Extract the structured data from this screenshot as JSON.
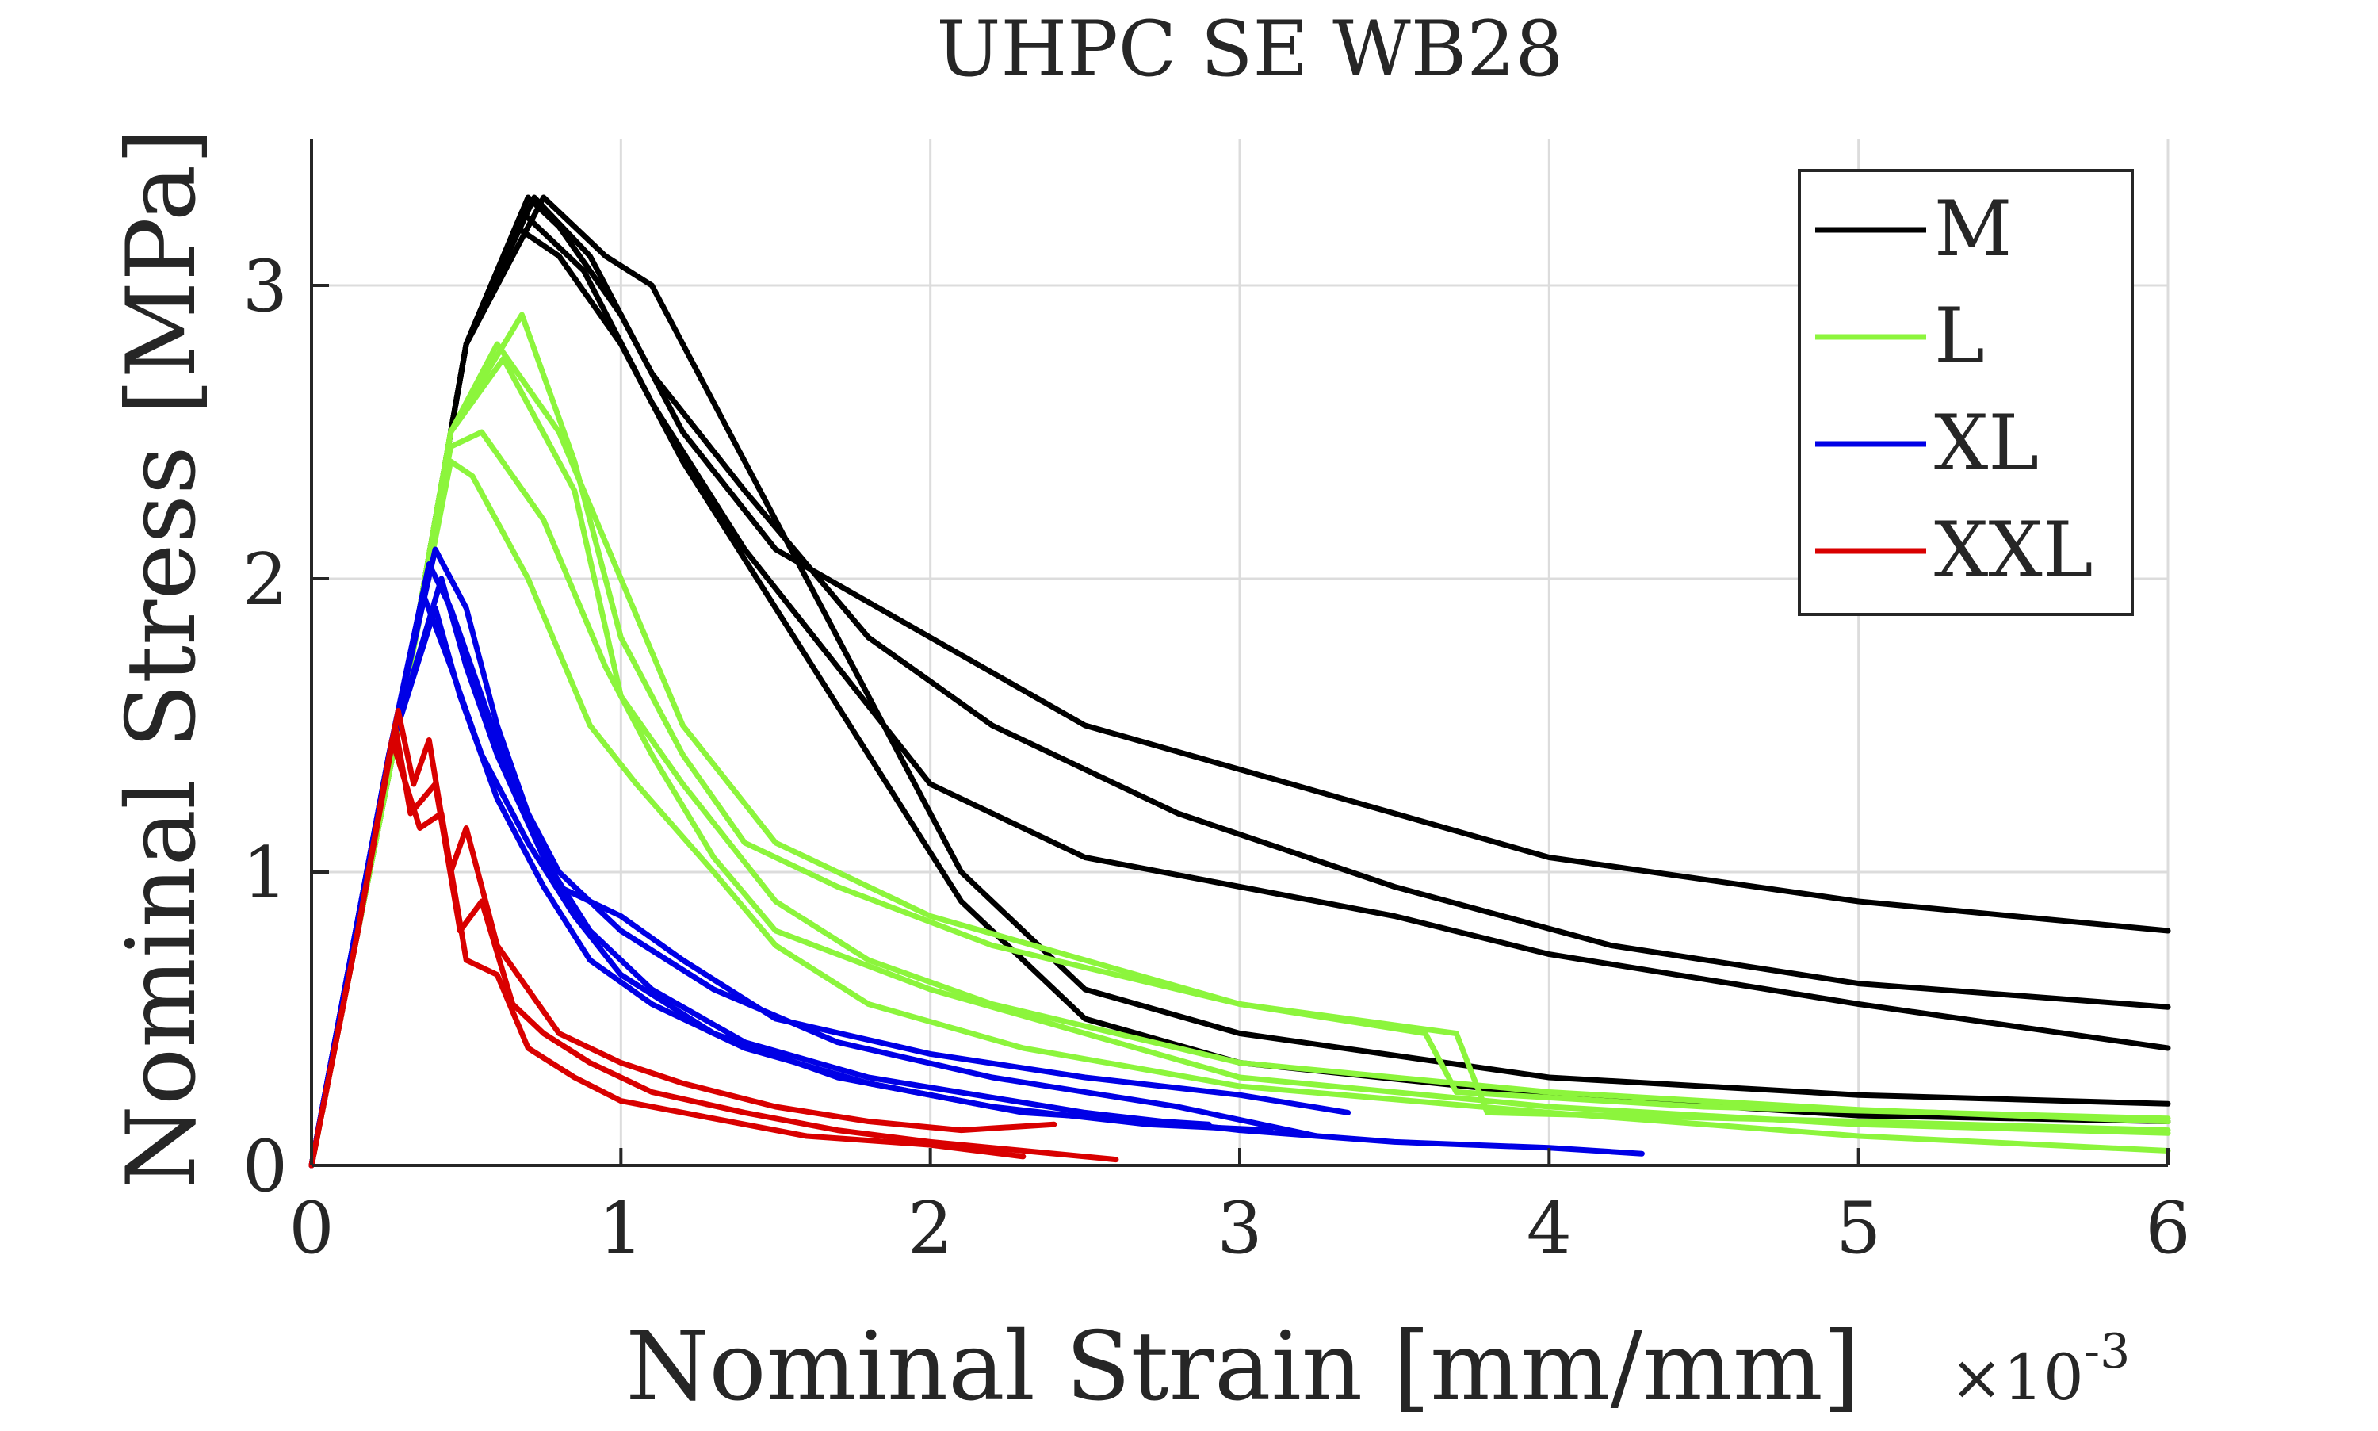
{
  "chart_data": {
    "type": "line",
    "title": "UHPC SE WB28",
    "xlabel": "Nominal Strain [mm/mm]",
    "ylabel": "Nominal Stress [MPa]",
    "x_multiplier_base": "×10",
    "x_multiplier_exponent": "-3",
    "xlim": [
      0,
      6
    ],
    "ylim": [
      0,
      3.5
    ],
    "xticks": [
      0,
      1,
      2,
      3,
      4,
      5,
      6
    ],
    "yticks": [
      0,
      1,
      2,
      3
    ],
    "x_tick_labels": [
      "0",
      "1",
      "2",
      "3",
      "4",
      "5",
      "6"
    ],
    "y_tick_labels": [
      "0",
      "1",
      "2",
      "3"
    ],
    "grid": true,
    "legend_position": "top-right",
    "legend": [
      "M",
      "L",
      "XL",
      "XXL"
    ],
    "colors": {
      "M": "#000000",
      "L": "#8cf53c",
      "XL": "#0000e6",
      "XXL": "#d90000",
      "axis": "#262626",
      "grid": "#dcdcdc"
    },
    "series": [
      {
        "name": "M",
        "color": "#000000",
        "points": [
          [
            0,
            0
          ],
          [
            0.3,
            1.6
          ],
          [
            0.5,
            2.8
          ],
          [
            0.7,
            3.3
          ],
          [
            0.8,
            3.2
          ],
          [
            1.0,
            2.9
          ],
          [
            1.2,
            2.5
          ],
          [
            1.5,
            2.1
          ],
          [
            2.0,
            1.8
          ],
          [
            2.5,
            1.5
          ],
          [
            3.0,
            1.35
          ],
          [
            3.5,
            1.2
          ],
          [
            4.0,
            1.05
          ],
          [
            5.0,
            0.9
          ],
          [
            6.0,
            0.8
          ]
        ]
      },
      {
        "name": "M",
        "color": "#000000",
        "points": [
          [
            0,
            0
          ],
          [
            0.3,
            1.6
          ],
          [
            0.5,
            2.8
          ],
          [
            0.72,
            3.3
          ],
          [
            0.9,
            3.1
          ],
          [
            1.1,
            2.7
          ],
          [
            1.4,
            2.3
          ],
          [
            1.8,
            1.8
          ],
          [
            2.2,
            1.5
          ],
          [
            2.8,
            1.2
          ],
          [
            3.5,
            0.95
          ],
          [
            4.2,
            0.75
          ],
          [
            5.0,
            0.62
          ],
          [
            6.0,
            0.54
          ]
        ]
      },
      {
        "name": "M",
        "color": "#000000",
        "points": [
          [
            0,
            0
          ],
          [
            0.3,
            1.6
          ],
          [
            0.5,
            2.8
          ],
          [
            0.68,
            3.25
          ],
          [
            0.88,
            3.05
          ],
          [
            1.1,
            2.6
          ],
          [
            1.4,
            2.1
          ],
          [
            1.7,
            1.7
          ],
          [
            2.0,
            1.3
          ],
          [
            2.5,
            1.05
          ],
          [
            3.0,
            0.95
          ],
          [
            3.5,
            0.85
          ],
          [
            4.0,
            0.72
          ],
          [
            5.0,
            0.55
          ],
          [
            6.0,
            0.4
          ]
        ]
      },
      {
        "name": "M",
        "color": "#000000",
        "points": [
          [
            0,
            0
          ],
          [
            0.3,
            1.6
          ],
          [
            0.5,
            2.8
          ],
          [
            0.75,
            3.3
          ],
          [
            0.95,
            3.1
          ],
          [
            1.1,
            3.0
          ],
          [
            1.3,
            2.6
          ],
          [
            1.5,
            2.2
          ],
          [
            1.8,
            1.6
          ],
          [
            2.1,
            1.0
          ],
          [
            2.5,
            0.6
          ],
          [
            3.0,
            0.45
          ],
          [
            4.0,
            0.3
          ],
          [
            5.0,
            0.24
          ],
          [
            6.0,
            0.21
          ]
        ]
      },
      {
        "name": "M",
        "color": "#000000",
        "points": [
          [
            0,
            0
          ],
          [
            0.3,
            1.6
          ],
          [
            0.5,
            2.8
          ],
          [
            0.66,
            3.2
          ],
          [
            0.8,
            3.1
          ],
          [
            1.0,
            2.8
          ],
          [
            1.2,
            2.4
          ],
          [
            1.5,
            1.9
          ],
          [
            1.8,
            1.4
          ],
          [
            2.1,
            0.9
          ],
          [
            2.5,
            0.5
          ],
          [
            3.0,
            0.35
          ],
          [
            4.0,
            0.24
          ],
          [
            5.0,
            0.17
          ],
          [
            6.0,
            0.15
          ]
        ]
      },
      {
        "name": "L",
        "color": "#8cf53c",
        "points": [
          [
            0,
            0
          ],
          [
            0.3,
            1.6
          ],
          [
            0.45,
            2.5
          ],
          [
            0.68,
            2.9
          ],
          [
            0.85,
            2.4
          ],
          [
            1.0,
            1.8
          ],
          [
            1.2,
            1.4
          ],
          [
            1.4,
            1.1
          ],
          [
            1.7,
            0.95
          ],
          [
            2.2,
            0.75
          ],
          [
            3.0,
            0.55
          ],
          [
            3.6,
            0.45
          ],
          [
            3.7,
            0.25
          ],
          [
            4.5,
            0.2
          ],
          [
            6.0,
            0.16
          ]
        ]
      },
      {
        "name": "L",
        "color": "#8cf53c",
        "points": [
          [
            0,
            0
          ],
          [
            0.3,
            1.6
          ],
          [
            0.45,
            2.5
          ],
          [
            0.6,
            2.8
          ],
          [
            0.8,
            2.5
          ],
          [
            1.0,
            2.0
          ],
          [
            1.2,
            1.5
          ],
          [
            1.5,
            1.1
          ],
          [
            2.0,
            0.85
          ],
          [
            2.5,
            0.7
          ],
          [
            3.0,
            0.55
          ],
          [
            3.7,
            0.45
          ],
          [
            3.8,
            0.18
          ],
          [
            5.0,
            0.15
          ],
          [
            6.0,
            0.12
          ]
        ]
      },
      {
        "name": "L",
        "color": "#8cf53c",
        "points": [
          [
            0,
            0
          ],
          [
            0.3,
            1.6
          ],
          [
            0.45,
            2.5
          ],
          [
            0.62,
            2.75
          ],
          [
            0.85,
            2.3
          ],
          [
            1.0,
            1.6
          ],
          [
            1.2,
            1.3
          ],
          [
            1.5,
            0.9
          ],
          [
            1.8,
            0.7
          ],
          [
            2.2,
            0.55
          ],
          [
            3.0,
            0.35
          ],
          [
            4.0,
            0.25
          ],
          [
            5.0,
            0.19
          ],
          [
            6.0,
            0.15
          ]
        ]
      },
      {
        "name": "L",
        "color": "#8cf53c",
        "points": [
          [
            0,
            0
          ],
          [
            0.3,
            1.6
          ],
          [
            0.45,
            2.45
          ],
          [
            0.55,
            2.5
          ],
          [
            0.75,
            2.2
          ],
          [
            0.95,
            1.7
          ],
          [
            1.1,
            1.4
          ],
          [
            1.3,
            1.05
          ],
          [
            1.5,
            0.8
          ],
          [
            2.0,
            0.6
          ],
          [
            2.5,
            0.45
          ],
          [
            3.0,
            0.3
          ],
          [
            4.0,
            0.2
          ],
          [
            5.0,
            0.14
          ],
          [
            6.0,
            0.11
          ]
        ]
      },
      {
        "name": "L",
        "color": "#8cf53c",
        "points": [
          [
            0,
            0
          ],
          [
            0.3,
            1.6
          ],
          [
            0.45,
            2.4
          ],
          [
            0.52,
            2.35
          ],
          [
            0.7,
            2.0
          ],
          [
            0.9,
            1.5
          ],
          [
            1.05,
            1.3
          ],
          [
            1.3,
            1.0
          ],
          [
            1.5,
            0.75
          ],
          [
            1.8,
            0.55
          ],
          [
            2.3,
            0.4
          ],
          [
            3.0,
            0.27
          ],
          [
            4.0,
            0.18
          ],
          [
            5.0,
            0.1
          ],
          [
            6.0,
            0.05
          ]
        ]
      },
      {
        "name": "XL",
        "color": "#0000e6",
        "points": [
          [
            0,
            0
          ],
          [
            0.25,
            1.4
          ],
          [
            0.4,
            2.1
          ],
          [
            0.5,
            1.9
          ],
          [
            0.6,
            1.5
          ],
          [
            0.7,
            1.2
          ],
          [
            0.8,
            0.95
          ],
          [
            1.0,
            0.85
          ],
          [
            1.2,
            0.7
          ],
          [
            1.5,
            0.5
          ],
          [
            2.0,
            0.38
          ],
          [
            2.5,
            0.3
          ],
          [
            3.0,
            0.24
          ],
          [
            3.35,
            0.18
          ]
        ]
      },
      {
        "name": "XL",
        "color": "#0000e6",
        "points": [
          [
            0,
            0
          ],
          [
            0.25,
            1.4
          ],
          [
            0.38,
            2.05
          ],
          [
            0.45,
            1.9
          ],
          [
            0.55,
            1.6
          ],
          [
            0.65,
            1.3
          ],
          [
            0.8,
            1.0
          ],
          [
            1.0,
            0.8
          ],
          [
            1.3,
            0.6
          ],
          [
            1.7,
            0.42
          ],
          [
            2.2,
            0.3
          ],
          [
            2.8,
            0.2
          ],
          [
            3.25,
            0.1
          ]
        ]
      },
      {
        "name": "XL",
        "color": "#0000e6",
        "points": [
          [
            0,
            0
          ],
          [
            0.25,
            1.4
          ],
          [
            0.42,
            2.0
          ],
          [
            0.5,
            1.7
          ],
          [
            0.6,
            1.4
          ],
          [
            0.75,
            1.05
          ],
          [
            0.9,
            0.8
          ],
          [
            1.1,
            0.6
          ],
          [
            1.4,
            0.42
          ],
          [
            1.8,
            0.3
          ],
          [
            2.5,
            0.18
          ],
          [
            3.0,
            0.12
          ],
          [
            3.5,
            0.08
          ],
          [
            4.0,
            0.06
          ],
          [
            4.3,
            0.04
          ]
        ]
      },
      {
        "name": "XL",
        "color": "#0000e6",
        "points": [
          [
            0,
            0
          ],
          [
            0.25,
            1.4
          ],
          [
            0.36,
            1.95
          ],
          [
            0.45,
            1.7
          ],
          [
            0.55,
            1.4
          ],
          [
            0.7,
            1.1
          ],
          [
            0.85,
            0.85
          ],
          [
            1.0,
            0.65
          ],
          [
            1.3,
            0.45
          ],
          [
            1.7,
            0.3
          ],
          [
            2.2,
            0.2
          ],
          [
            2.7,
            0.14
          ],
          [
            3.1,
            0.12
          ]
        ]
      },
      {
        "name": "XL",
        "color": "#0000e6",
        "points": [
          [
            0,
            0
          ],
          [
            0.25,
            1.4
          ],
          [
            0.4,
            1.9
          ],
          [
            0.48,
            1.6
          ],
          [
            0.6,
            1.25
          ],
          [
            0.75,
            0.95
          ],
          [
            0.9,
            0.7
          ],
          [
            1.1,
            0.55
          ],
          [
            1.4,
            0.4
          ],
          [
            1.8,
            0.28
          ],
          [
            2.3,
            0.18
          ],
          [
            2.9,
            0.14
          ]
        ]
      },
      {
        "name": "XXL",
        "color": "#d90000",
        "points": [
          [
            0,
            0
          ],
          [
            0.15,
            0.8
          ],
          [
            0.28,
            1.55
          ],
          [
            0.33,
            1.3
          ],
          [
            0.38,
            1.45
          ],
          [
            0.45,
            1.0
          ],
          [
            0.5,
            1.15
          ],
          [
            0.6,
            0.75
          ],
          [
            0.7,
            0.6
          ],
          [
            0.8,
            0.45
          ],
          [
            1.0,
            0.35
          ],
          [
            1.2,
            0.28
          ],
          [
            1.5,
            0.2
          ],
          [
            1.8,
            0.15
          ],
          [
            2.1,
            0.12
          ],
          [
            2.4,
            0.14
          ]
        ]
      },
      {
        "name": "XXL",
        "color": "#d90000",
        "points": [
          [
            0,
            0
          ],
          [
            0.15,
            0.8
          ],
          [
            0.27,
            1.5
          ],
          [
            0.32,
            1.2
          ],
          [
            0.4,
            1.3
          ],
          [
            0.48,
            0.8
          ],
          [
            0.55,
            0.9
          ],
          [
            0.65,
            0.55
          ],
          [
            0.75,
            0.45
          ],
          [
            0.9,
            0.35
          ],
          [
            1.1,
            0.25
          ],
          [
            1.4,
            0.18
          ],
          [
            1.7,
            0.12
          ],
          [
            2.0,
            0.08
          ],
          [
            2.3,
            0.05
          ],
          [
            2.6,
            0.02
          ]
        ]
      },
      {
        "name": "XXL",
        "color": "#d90000",
        "points": [
          [
            0,
            0
          ],
          [
            0.15,
            0.8
          ],
          [
            0.26,
            1.45
          ],
          [
            0.35,
            1.15
          ],
          [
            0.42,
            1.2
          ],
          [
            0.5,
            0.7
          ],
          [
            0.6,
            0.65
          ],
          [
            0.7,
            0.4
          ],
          [
            0.85,
            0.3
          ],
          [
            1.0,
            0.22
          ],
          [
            1.3,
            0.16
          ],
          [
            1.6,
            0.1
          ],
          [
            2.0,
            0.07
          ],
          [
            2.3,
            0.03
          ]
        ]
      }
    ]
  }
}
